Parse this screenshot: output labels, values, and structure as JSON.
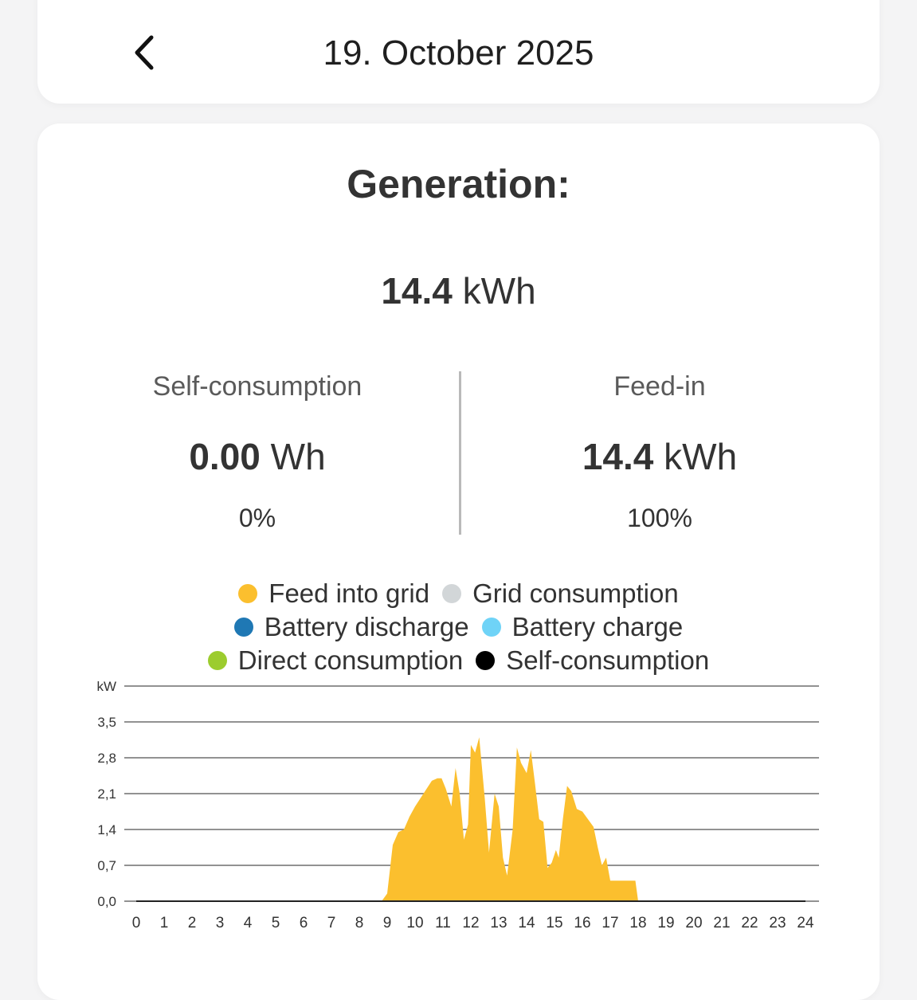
{
  "header": {
    "back_icon": "chevron-left-icon",
    "date": "19. October 2025"
  },
  "generation": {
    "title": "Generation:",
    "total_value": "14.4",
    "total_unit": "kWh"
  },
  "self_consumption": {
    "label": "Self-consumption",
    "value": "0.00",
    "unit": "Wh",
    "percent": "0%"
  },
  "feed_in": {
    "label": "Feed-in",
    "value": "14.4",
    "unit": "kWh",
    "percent": "100%"
  },
  "legend": [
    {
      "label": "Feed into grid",
      "color": "#fbbf2e"
    },
    {
      "label": "Grid consumption",
      "color": "#d2d6d8"
    },
    {
      "label": "Battery discharge",
      "color": "#1f78b4"
    },
    {
      "label": "Battery charge",
      "color": "#6fd3f7"
    },
    {
      "label": "Direct consumption",
      "color": "#9ccc2e"
    },
    {
      "label": "Self-consumption",
      "color": "#000000"
    }
  ],
  "chart_data": {
    "type": "area",
    "ylabel": "kW",
    "y_ticks": [
      "0,0",
      "0,7",
      "1,4",
      "2,1",
      "2,8",
      "3,5"
    ],
    "ylim": [
      0,
      4.2
    ],
    "x_ticks": [
      "0",
      "1",
      "2",
      "3",
      "4",
      "5",
      "6",
      "7",
      "8",
      "9",
      "10",
      "11",
      "12",
      "13",
      "14",
      "15",
      "16",
      "17",
      "18",
      "19",
      "20",
      "21",
      "22",
      "23",
      "24"
    ],
    "xlim": [
      0,
      24
    ],
    "grid": true,
    "series": [
      {
        "name": "Feed into grid",
        "color": "#fbbf2e",
        "points": [
          [
            0,
            0
          ],
          [
            8.8,
            0
          ],
          [
            9.0,
            0.15
          ],
          [
            9.2,
            1.1
          ],
          [
            9.4,
            1.35
          ],
          [
            9.6,
            1.4
          ],
          [
            9.8,
            1.65
          ],
          [
            10.0,
            1.85
          ],
          [
            10.3,
            2.1
          ],
          [
            10.6,
            2.35
          ],
          [
            10.8,
            2.4
          ],
          [
            10.95,
            2.4
          ],
          [
            11.1,
            2.2
          ],
          [
            11.3,
            1.85
          ],
          [
            11.45,
            2.6
          ],
          [
            11.6,
            2.1
          ],
          [
            11.75,
            1.2
          ],
          [
            11.9,
            1.5
          ],
          [
            12.0,
            3.05
          ],
          [
            12.15,
            2.9
          ],
          [
            12.3,
            3.2
          ],
          [
            12.5,
            2.0
          ],
          [
            12.65,
            0.95
          ],
          [
            12.85,
            2.1
          ],
          [
            13.0,
            1.85
          ],
          [
            13.15,
            0.85
          ],
          [
            13.3,
            0.5
          ],
          [
            13.5,
            1.4
          ],
          [
            13.65,
            3.0
          ],
          [
            13.8,
            2.7
          ],
          [
            14.0,
            2.5
          ],
          [
            14.15,
            2.95
          ],
          [
            14.3,
            2.3
          ],
          [
            14.45,
            1.6
          ],
          [
            14.6,
            1.55
          ],
          [
            14.75,
            0.65
          ],
          [
            14.9,
            0.75
          ],
          [
            15.05,
            1.0
          ],
          [
            15.15,
            0.85
          ],
          [
            15.3,
            1.6
          ],
          [
            15.45,
            2.25
          ],
          [
            15.6,
            2.15
          ],
          [
            15.8,
            1.8
          ],
          [
            16.0,
            1.75
          ],
          [
            16.2,
            1.6
          ],
          [
            16.4,
            1.45
          ],
          [
            16.55,
            1.05
          ],
          [
            16.7,
            0.7
          ],
          [
            16.85,
            0.85
          ],
          [
            17.0,
            0.4
          ],
          [
            17.6,
            0.4
          ],
          [
            17.9,
            0.4
          ],
          [
            18.0,
            0
          ],
          [
            24,
            0
          ]
        ]
      }
    ]
  }
}
